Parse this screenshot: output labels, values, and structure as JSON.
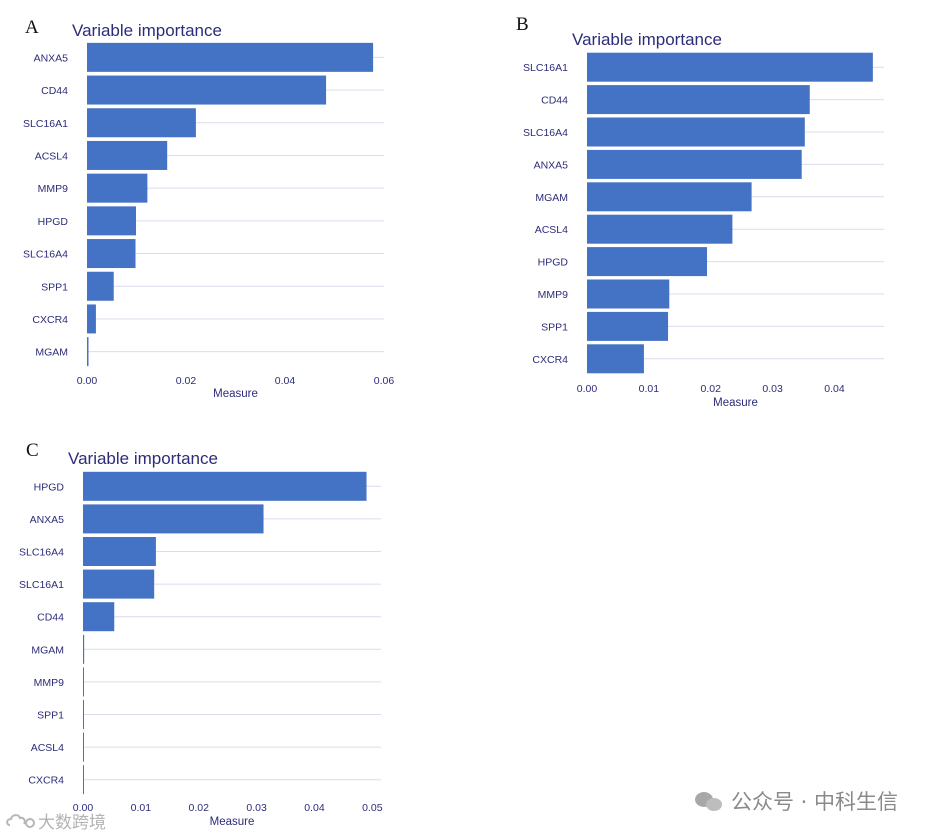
{
  "watermark": {
    "right_text": "公众号 · 中科生信",
    "left_text": "大数跨境",
    "right_icon": "wechat-icon",
    "left_icon": "cloud-logo-icon"
  },
  "colors": {
    "bar": "#4472c4",
    "text": "#2c2c7a",
    "grid": "#dcdcec"
  },
  "chart_data": [
    {
      "panel": "A",
      "type": "bar",
      "orientation": "horizontal",
      "title": "Variable importance",
      "xlabel": "Measure",
      "ylabel": "",
      "xlim": [
        0,
        0.06
      ],
      "ticks": [
        0.0,
        0.02,
        0.04,
        0.06
      ],
      "tick_labels": [
        "0.00",
        "0.02",
        "0.04",
        "0.06"
      ],
      "categories": [
        "ANXA5",
        "CD44",
        "SLC16A1",
        "ACSL4",
        "MMP9",
        "HPGD",
        "SLC16A4",
        "SPP1",
        "CXCR4",
        "MGAM"
      ],
      "values": [
        0.0578,
        0.0483,
        0.022,
        0.0162,
        0.0122,
        0.0099,
        0.0098,
        0.0054,
        0.0018,
        0.0003
      ]
    },
    {
      "panel": "B",
      "type": "bar",
      "orientation": "horizontal",
      "title": "Variable importance",
      "xlabel": "Measure",
      "ylabel": "",
      "xlim": [
        0,
        0.048
      ],
      "ticks": [
        0.0,
        0.01,
        0.02,
        0.03,
        0.04
      ],
      "tick_labels": [
        "0.00",
        "0.01",
        "0.02",
        "0.03",
        "0.04"
      ],
      "categories": [
        "SLC16A1",
        "CD44",
        "SLC16A4",
        "ANXA5",
        "MGAM",
        "ACSL4",
        "HPGD",
        "MMP9",
        "SPP1",
        "CXCR4"
      ],
      "values": [
        0.0462,
        0.036,
        0.0352,
        0.0347,
        0.0266,
        0.0235,
        0.0194,
        0.0133,
        0.0131,
        0.0092
      ]
    },
    {
      "panel": "C",
      "type": "bar",
      "orientation": "horizontal",
      "title": "Variable importance",
      "xlabel": "Measure",
      "ylabel": "",
      "xlim": [
        0,
        0.0515
      ],
      "ticks": [
        0.0,
        0.01,
        0.02,
        0.03,
        0.04,
        0.05
      ],
      "tick_labels": [
        "0.00",
        "0.01",
        "0.02",
        "0.03",
        "0.04",
        "0.05"
      ],
      "categories": [
        "HPGD",
        "ANXA5",
        "SLC16A4",
        "SLC16A1",
        "CD44",
        "MGAM",
        "MMP9",
        "SPP1",
        "ACSL4",
        "CXCR4"
      ],
      "values": [
        0.049,
        0.0312,
        0.0126,
        0.0123,
        0.0054,
        0.0002,
        0.0001,
        0.0001,
        0.0001,
        0.0
      ]
    }
  ]
}
